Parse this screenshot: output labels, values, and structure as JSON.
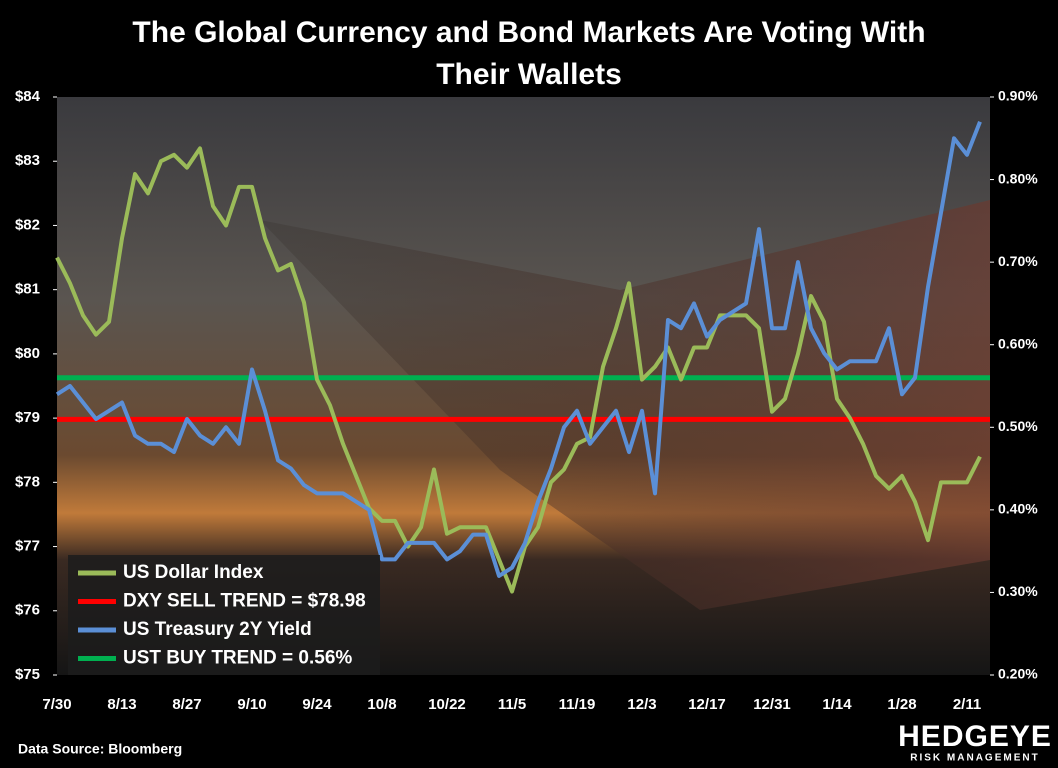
{
  "chart_data": {
    "type": "line",
    "title": "The Global Currency and Bond Markets Are Voting With Their Wallets",
    "source": "Data Source: Bloomberg",
    "logo": "HEDGEYE",
    "logo_subtitle": "RISK MANAGEMENT",
    "categories": [
      "7/30",
      null,
      null,
      null,
      null,
      "8/13",
      null,
      null,
      null,
      null,
      "8/27",
      null,
      null,
      null,
      null,
      "9/10",
      null,
      null,
      null,
      null,
      "9/24",
      null,
      null,
      null,
      null,
      "10/8",
      null,
      null,
      null,
      null,
      "10/22",
      null,
      null,
      null,
      null,
      "11/5",
      null,
      null,
      null,
      null,
      "11/19",
      null,
      null,
      null,
      null,
      "12/3",
      null,
      null,
      null,
      null,
      "12/17",
      null,
      null,
      null,
      null,
      "12/31",
      null,
      null,
      null,
      null,
      "1/14",
      null,
      null,
      null,
      null,
      "1/28",
      null,
      null,
      null,
      null,
      "2/11",
      null
    ],
    "ylim": [
      75,
      84
    ],
    "yticks": [
      {
        "value": 75,
        "label": "$75"
      },
      {
        "value": 76,
        "label": "$76"
      },
      {
        "value": 77,
        "label": "$77"
      },
      {
        "value": 78,
        "label": "$78"
      },
      {
        "value": 79,
        "label": "$79"
      },
      {
        "value": 80,
        "label": "$80"
      },
      {
        "value": 81,
        "label": "$81"
      },
      {
        "value": 82,
        "label": "$82"
      },
      {
        "value": 83,
        "label": "$83"
      },
      {
        "value": 84,
        "label": "$84"
      }
    ],
    "y2lim": [
      0.2,
      0.9
    ],
    "y2ticks": [
      {
        "value": 0.2,
        "label": "0.20%"
      },
      {
        "value": 0.3,
        "label": "0.30%"
      },
      {
        "value": 0.4,
        "label": "0.40%"
      },
      {
        "value": 0.5,
        "label": "0.50%"
      },
      {
        "value": 0.6,
        "label": "0.60%"
      },
      {
        "value": 0.7,
        "label": "0.70%"
      },
      {
        "value": 0.8,
        "label": "0.80%"
      },
      {
        "value": 0.9,
        "label": "0.90%"
      }
    ],
    "series": [
      {
        "name": "US Dollar Index",
        "color": "#9bbb59",
        "axis": "y",
        "values": [
          81.5,
          81.1,
          80.6,
          80.3,
          80.5,
          81.8,
          82.8,
          82.5,
          83.0,
          83.1,
          82.9,
          83.2,
          82.3,
          82.0,
          82.6,
          82.6,
          81.8,
          81.3,
          81.4,
          80.8,
          79.6,
          79.2,
          78.6,
          78.1,
          77.6,
          77.4,
          77.4,
          77.0,
          77.3,
          78.2,
          77.2,
          77.3,
          77.3,
          77.3,
          76.8,
          76.3,
          77.0,
          77.3,
          78.0,
          78.2,
          78.6,
          78.7,
          79.8,
          80.4,
          81.1,
          79.6,
          79.8,
          80.1,
          79.6,
          80.1,
          80.1,
          80.6,
          80.6,
          80.6,
          80.4,
          79.1,
          79.3,
          80.0,
          80.9,
          80.5,
          79.3,
          79.0,
          78.6,
          78.1,
          77.9,
          78.1,
          77.7,
          77.1,
          78.0,
          78.0,
          78.0,
          78.4
        ]
      },
      {
        "name": "US Treasury 2Y Yield",
        "color": "#5b8fd6",
        "axis": "y2",
        "values": [
          0.54,
          0.55,
          0.53,
          0.51,
          0.52,
          0.53,
          0.49,
          0.48,
          0.48,
          0.47,
          0.51,
          0.49,
          0.48,
          0.5,
          0.48,
          0.57,
          0.52,
          0.46,
          0.45,
          0.43,
          0.42,
          0.42,
          0.42,
          0.41,
          0.4,
          0.34,
          0.34,
          0.36,
          0.36,
          0.36,
          0.34,
          0.35,
          0.37,
          0.37,
          0.32,
          0.33,
          0.36,
          0.41,
          0.45,
          0.5,
          0.52,
          0.48,
          0.5,
          0.52,
          0.47,
          0.52,
          0.42,
          0.63,
          0.62,
          0.65,
          0.61,
          0.63,
          0.64,
          0.65,
          0.74,
          0.62,
          0.62,
          0.7,
          0.62,
          0.59,
          0.57,
          0.58,
          0.58,
          0.58,
          0.62,
          0.54,
          0.56,
          0.67,
          0.76,
          0.85,
          0.83,
          0.87
        ]
      }
    ],
    "reference_lines": [
      {
        "name": "DXY SELL TREND = $78.98",
        "value": 78.98,
        "axis": "y",
        "color": "#ff0000"
      },
      {
        "name": "UST BUY TREND = 0.56%",
        "value": 0.56,
        "axis": "y2",
        "color": "#00b050"
      }
    ]
  }
}
